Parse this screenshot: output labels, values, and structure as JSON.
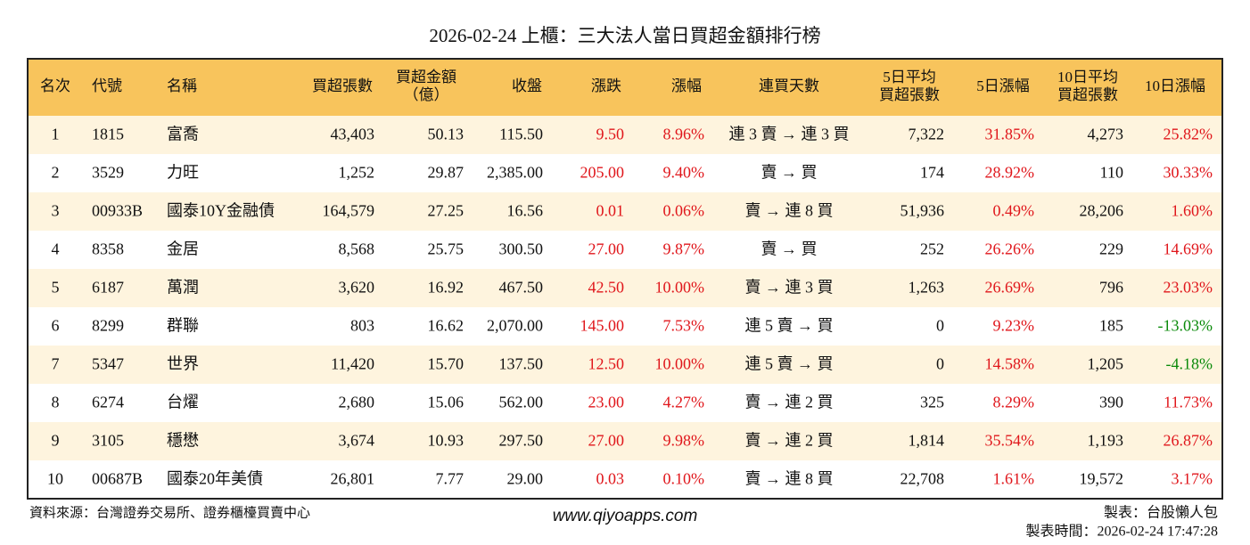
{
  "title": "2026-02-24 上櫃：三大法人當日買超金額排行榜",
  "table": {
    "headers": [
      [
        "名次"
      ],
      [
        "代號"
      ],
      [
        "名稱"
      ],
      [
        "買超張數"
      ],
      [
        "買超金額",
        "（億）"
      ],
      [
        "收盤"
      ],
      [
        "漲跌"
      ],
      [
        "漲幅"
      ],
      [
        "連買天數"
      ],
      [
        "5日平均",
        "買超張數"
      ],
      [
        "5日漲幅"
      ],
      [
        "10日平均",
        "買超張數"
      ],
      [
        "10日漲幅"
      ]
    ],
    "rows": [
      [
        "1",
        "1815",
        "富喬",
        "43,403",
        "50.13",
        "115.50",
        "9.50",
        "8.96%",
        "連 3 賣 → 連 3 買",
        "7,322",
        "31.85%",
        "4,273",
        "25.82%"
      ],
      [
        "2",
        "3529",
        "力旺",
        "1,252",
        "29.87",
        "2,385.00",
        "205.00",
        "9.40%",
        "賣 → 買",
        "174",
        "28.92%",
        "110",
        "30.33%"
      ],
      [
        "3",
        "00933B",
        "國泰10Y金融債",
        "164,579",
        "27.25",
        "16.56",
        "0.01",
        "0.06%",
        "賣 → 連 8 買",
        "51,936",
        "0.49%",
        "28,206",
        "1.60%"
      ],
      [
        "4",
        "8358",
        "金居",
        "8,568",
        "25.75",
        "300.50",
        "27.00",
        "9.87%",
        "賣 → 買",
        "252",
        "26.26%",
        "229",
        "14.69%"
      ],
      [
        "5",
        "6187",
        "萬潤",
        "3,620",
        "16.92",
        "467.50",
        "42.50",
        "10.00%",
        "賣 → 連 3 買",
        "1,263",
        "26.69%",
        "796",
        "23.03%"
      ],
      [
        "6",
        "8299",
        "群聯",
        "803",
        "16.62",
        "2,070.00",
        "145.00",
        "7.53%",
        "連 5 賣 → 買",
        "0",
        "9.23%",
        "185",
        "-13.03%"
      ],
      [
        "7",
        "5347",
        "世界",
        "11,420",
        "15.70",
        "137.50",
        "12.50",
        "10.00%",
        "連 5 賣 → 買",
        "0",
        "14.58%",
        "1,205",
        "-4.18%"
      ],
      [
        "8",
        "6274",
        "台燿",
        "2,680",
        "15.06",
        "562.00",
        "23.00",
        "4.27%",
        "賣 → 連 2 買",
        "325",
        "8.29%",
        "390",
        "11.73%"
      ],
      [
        "9",
        "3105",
        "穩懋",
        "3,674",
        "10.93",
        "297.50",
        "27.00",
        "9.98%",
        "賣 → 連 2 買",
        "1,814",
        "35.54%",
        "1,193",
        "26.87%"
      ],
      [
        "10",
        "00687B",
        "國泰20年美債",
        "26,801",
        "7.77",
        "29.00",
        "0.03",
        "0.10%",
        "賣 → 連 8 買",
        "22,708",
        "1.61%",
        "19,572",
        "3.17%"
      ]
    ]
  },
  "footer": {
    "source": "資料來源：台灣證券交易所、證券櫃檯買賣中心",
    "site": "www.qiyoapps.com",
    "maker": "製表：台股懶人包",
    "time": "製表時間：2026-02-24 17:47:28"
  }
}
